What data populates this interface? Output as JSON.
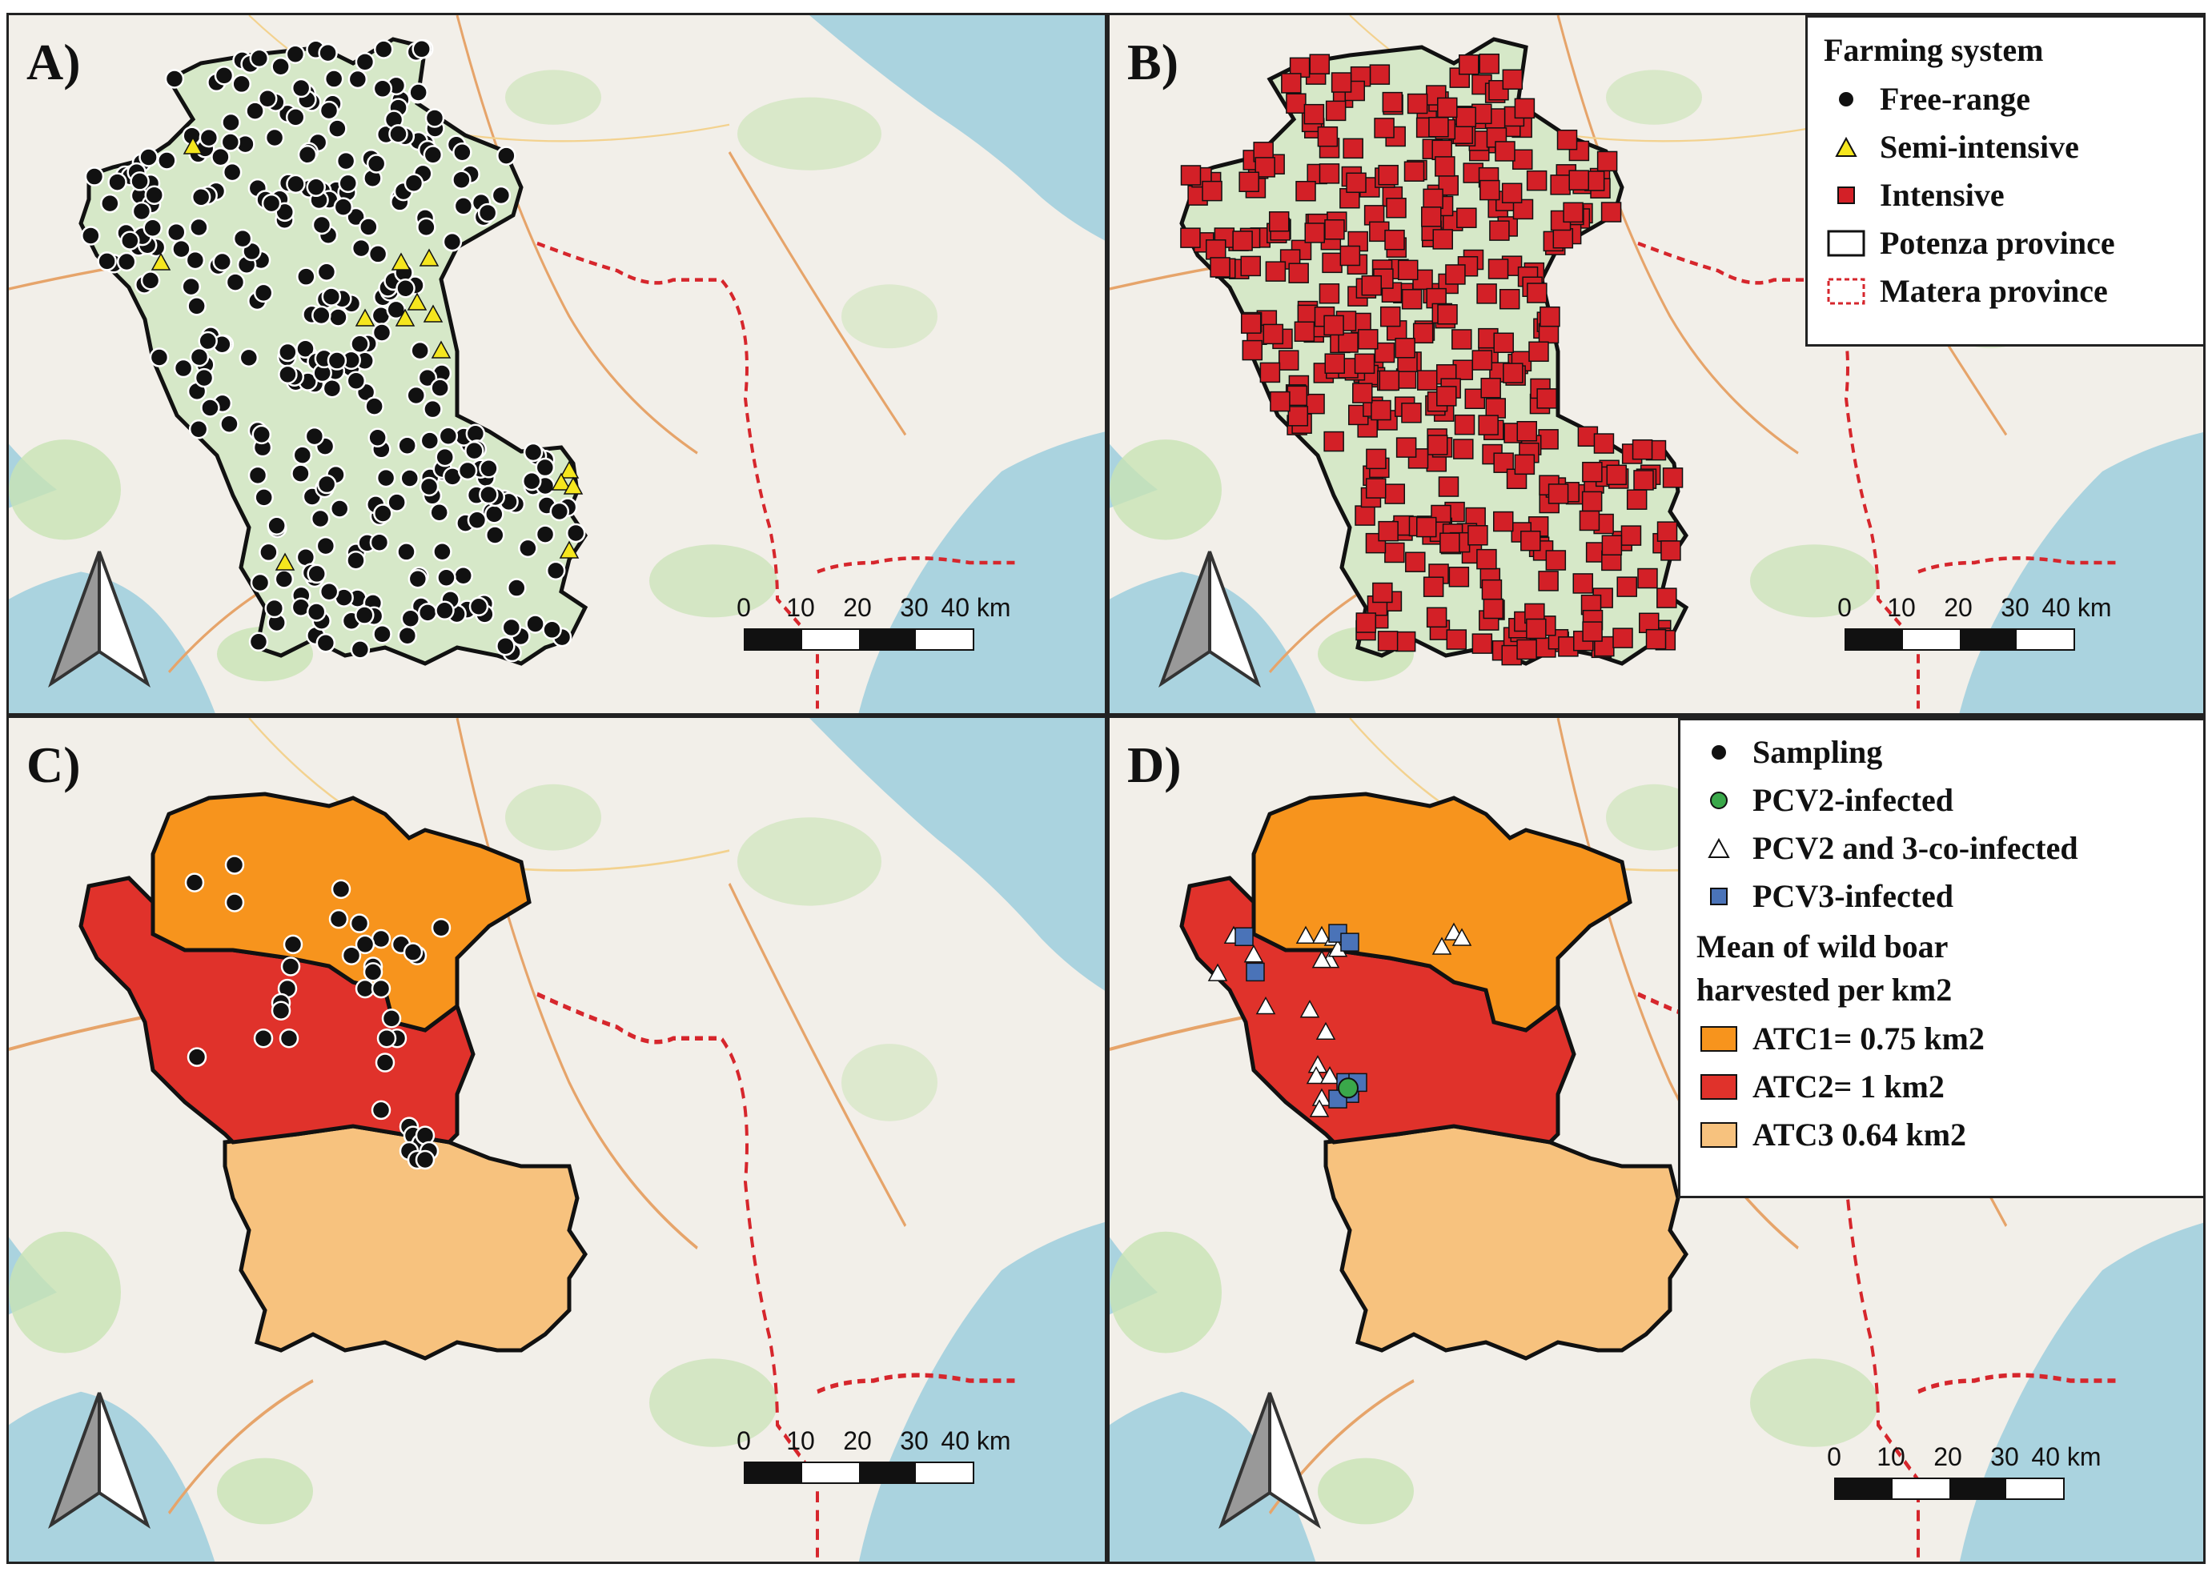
{
  "panels": {
    "a": {
      "label": "A)"
    },
    "b": {
      "label": "B)"
    },
    "c": {
      "label": "C)"
    },
    "d": {
      "label": "D)"
    }
  },
  "scalebar": {
    "ticks": [
      "0",
      "10",
      "20",
      "30",
      "40 km"
    ]
  },
  "legend_b": {
    "title": "Farming system",
    "items": [
      {
        "label": "Free-range",
        "symbol": "black-circle"
      },
      {
        "label": "Semi-intensive",
        "symbol": "yellow-triangle"
      },
      {
        "label": "Intensive",
        "symbol": "red-square"
      },
      {
        "label": "Potenza province",
        "symbol": "black-outline-box"
      },
      {
        "label": "Matera province",
        "symbol": "red-dashed-box"
      }
    ]
  },
  "legend_d": {
    "items": [
      {
        "label": "Sampling",
        "symbol": "black-circle"
      },
      {
        "label": "PCV2-infected",
        "symbol": "green-circle"
      },
      {
        "label": "PCV2 and 3-co-infected",
        "symbol": "white-triangle"
      },
      {
        "label": "PCV3-infected",
        "symbol": "blue-square"
      }
    ],
    "subtitle_line1": "Mean of wild boar",
    "subtitle_line2": "harvested per km2",
    "classes": [
      {
        "label": "ATC1= 0.75 km2",
        "color": "#f7941d"
      },
      {
        "label": "ATC2= 1 km2",
        "color": "#e0322b"
      },
      {
        "label": "ATC3 0.64 km2",
        "color": "#f7c27e"
      }
    ]
  },
  "colors": {
    "sea": "#aad3df",
    "land": "#f2efe9",
    "forest": "#c8e3b4",
    "free_range": "#111111",
    "semi_intensive": "#f5e61e",
    "intensive": "#d32027",
    "pcv2": "#3aa84a",
    "pcv3": "#4a73b8",
    "matera_border": "#d6262c"
  }
}
